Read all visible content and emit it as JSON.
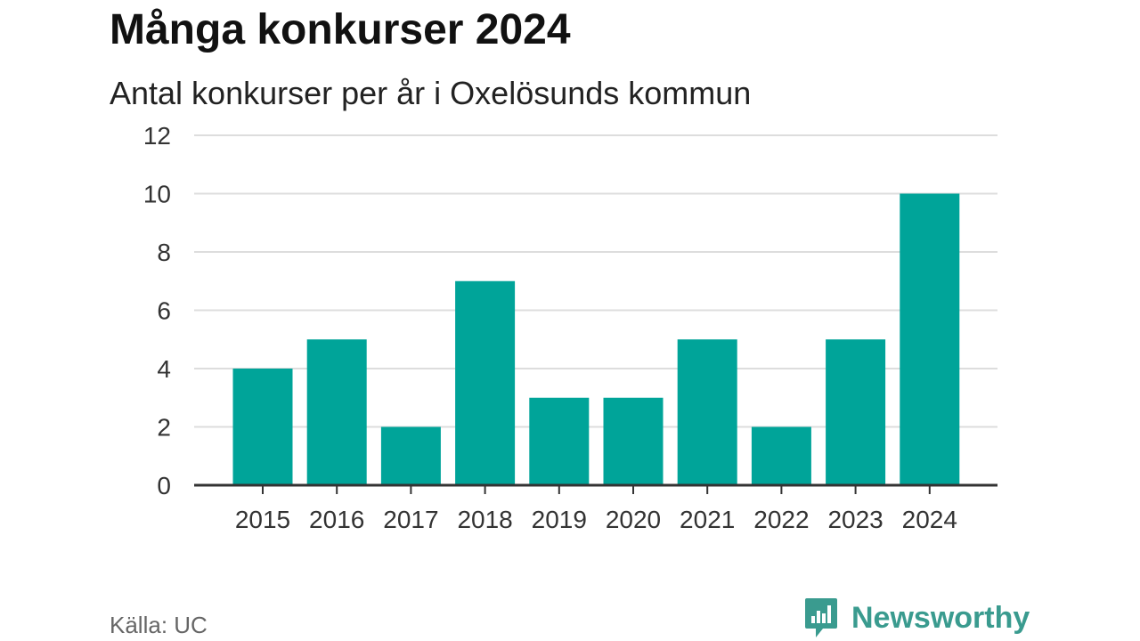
{
  "title": "Många konkurser 2024",
  "subtitle": "Antal konkurser per år i Oxelösunds kommun",
  "source": "Källa: UC",
  "brand": {
    "name": "Newsworthy",
    "icon": "newsworthy-logo-icon"
  },
  "colors": {
    "bar": "#00a499",
    "grid": "#dddddd",
    "axis": "#333333",
    "brand": "#3a9b8f"
  },
  "chart_data": {
    "type": "bar",
    "title": "Många konkurser 2024",
    "subtitle": "Antal konkurser per år i Oxelösunds kommun",
    "xlabel": "",
    "ylabel": "",
    "categories": [
      "2015",
      "2016",
      "2017",
      "2018",
      "2019",
      "2020",
      "2021",
      "2022",
      "2023",
      "2024"
    ],
    "values": [
      4,
      5,
      2,
      7,
      3,
      3,
      5,
      2,
      5,
      10
    ],
    "ylim": [
      0,
      12
    ],
    "yticks": [
      0,
      2,
      4,
      6,
      8,
      10,
      12
    ],
    "grid": true,
    "legend": "none"
  }
}
